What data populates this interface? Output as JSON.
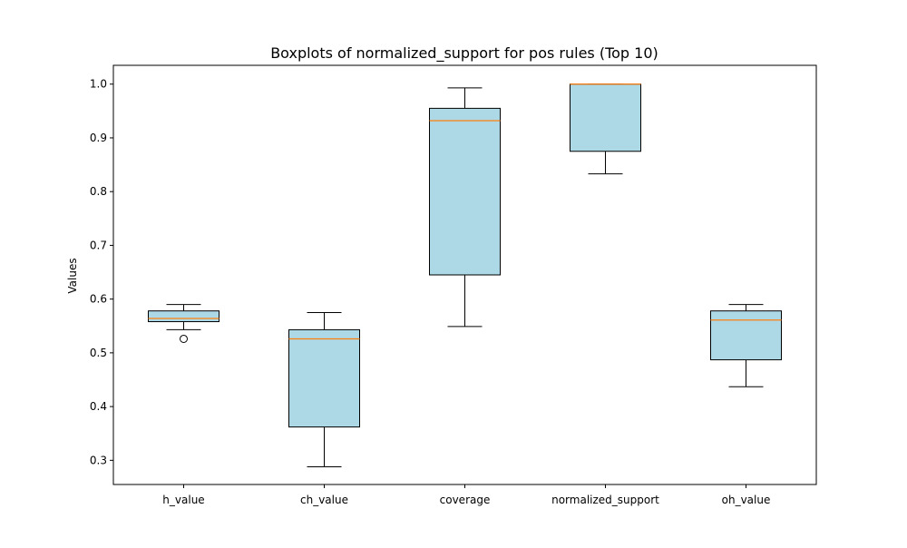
{
  "chart_data": {
    "type": "boxplot",
    "title": "Boxplots of normalized_support for pos rules (Top 10)",
    "xlabel": "",
    "ylabel": "Values",
    "categories": [
      "h_value",
      "ch_value",
      "coverage",
      "normalized_support",
      "oh_value"
    ],
    "ylim": [
      0.255,
      1.035
    ],
    "yticks": [
      0.3,
      0.4,
      0.5,
      0.6,
      0.7,
      0.8,
      0.9,
      1.0
    ],
    "ytick_labels": [
      "0.3",
      "0.4",
      "0.5",
      "0.6",
      "0.7",
      "0.8",
      "0.9",
      "1.0"
    ],
    "grid": false,
    "boxes": [
      {
        "label": "h_value",
        "whisker_low": 0.543,
        "q1": 0.558,
        "median": 0.564,
        "q3": 0.578,
        "whisker_high": 0.59,
        "outliers": [
          0.526
        ]
      },
      {
        "label": "ch_value",
        "whisker_low": 0.288,
        "q1": 0.362,
        "median": 0.526,
        "q3": 0.543,
        "whisker_high": 0.575,
        "outliers": []
      },
      {
        "label": "coverage",
        "whisker_low": 0.549,
        "q1": 0.645,
        "median": 0.932,
        "q3": 0.955,
        "whisker_high": 0.993,
        "outliers": []
      },
      {
        "label": "normalized_support",
        "whisker_low": 0.833,
        "q1": 0.875,
        "median": 1.0,
        "q3": 1.0,
        "whisker_high": 1.0,
        "outliers": []
      },
      {
        "label": "oh_value",
        "whisker_low": 0.437,
        "q1": 0.487,
        "median": 0.561,
        "q3": 0.578,
        "whisker_high": 0.59,
        "outliers": []
      }
    ],
    "colors": {
      "box_fill": "#add8e6",
      "box_edge": "#000000",
      "median": "#ff7f0e",
      "axis": "#000000"
    }
  }
}
